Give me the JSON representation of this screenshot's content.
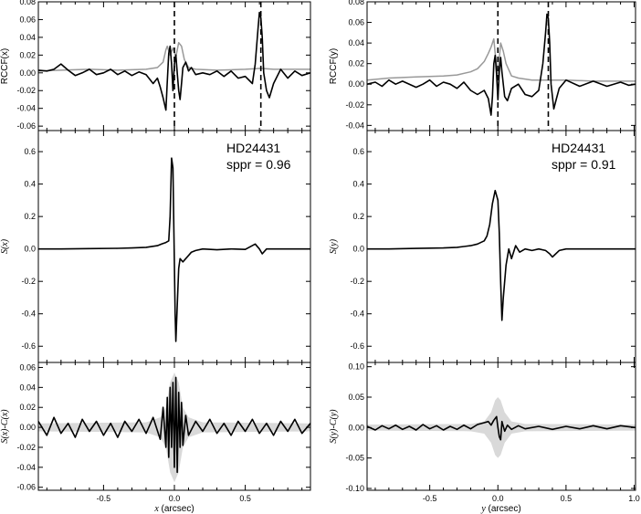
{
  "chart_data": [
    {
      "panel": "top-left",
      "type": "line",
      "ylabel": "RCCF(x)",
      "ylim": [
        -0.065,
        0.08
      ],
      "xlim": [
        -0.96,
        0.96
      ],
      "yticks": [
        "0.08",
        "0.06",
        "0.04",
        "0.02",
        "0.00",
        "-0.02",
        "-0.04",
        "-0.06"
      ],
      "ytick_values": [
        0.08,
        0.06,
        0.04,
        0.02,
        0.0,
        -0.02,
        -0.04,
        -0.06
      ],
      "vlines": [
        0.0,
        0.61
      ],
      "series": [
        {
          "color": "#999999",
          "x": [
            -0.96,
            -0.8,
            -0.6,
            -0.4,
            -0.2,
            -0.12,
            -0.08,
            -0.06,
            -0.05,
            -0.03,
            -0.01,
            0.01,
            0.03,
            0.05,
            0.07,
            0.1,
            0.15,
            0.3,
            0.5,
            0.61,
            0.7,
            0.96
          ],
          "y": [
            0.002,
            0.003,
            0.004,
            0.003,
            0.004,
            0.006,
            0.012,
            0.026,
            0.03,
            0.02,
            0.028,
            0.018,
            0.034,
            0.03,
            0.015,
            0.006,
            0.004,
            0.003,
            0.004,
            0.005,
            0.004,
            0.004
          ]
        },
        {
          "color": "#000000",
          "x": [
            -0.96,
            -0.9,
            -0.85,
            -0.8,
            -0.75,
            -0.7,
            -0.65,
            -0.6,
            -0.55,
            -0.5,
            -0.45,
            -0.4,
            -0.35,
            -0.3,
            -0.25,
            -0.2,
            -0.15,
            -0.12,
            -0.1,
            -0.08,
            -0.06,
            -0.05,
            -0.04,
            -0.03,
            -0.02,
            -0.01,
            0.0,
            0.01,
            0.02,
            0.03,
            0.04,
            0.05,
            0.06,
            0.08,
            0.1,
            0.12,
            0.15,
            0.2,
            0.25,
            0.3,
            0.35,
            0.4,
            0.45,
            0.5,
            0.55,
            0.57,
            0.59,
            0.6,
            0.61,
            0.62,
            0.63,
            0.65,
            0.67,
            0.7,
            0.75,
            0.8,
            0.85,
            0.9,
            0.96
          ],
          "y": [
            0.003,
            0.002,
            0.004,
            0.01,
            0.003,
            -0.003,
            0.0,
            0.004,
            -0.002,
            0.0,
            0.004,
            -0.002,
            0.002,
            -0.003,
            0.001,
            -0.002,
            -0.012,
            -0.006,
            -0.016,
            -0.028,
            -0.042,
            -0.01,
            0.022,
            0.03,
            0.01,
            -0.02,
            0.01,
            0.02,
            0.0,
            -0.02,
            -0.03,
            -0.012,
            0.006,
            0.012,
            0.002,
            0.006,
            -0.002,
            0.0,
            -0.002,
            0.002,
            -0.004,
            0.002,
            -0.006,
            -0.004,
            -0.012,
            0.01,
            0.05,
            0.068,
            0.062,
            0.04,
            0.0,
            -0.02,
            -0.028,
            -0.012,
            0.004,
            -0.006,
            0.002,
            -0.003,
            0.0
          ]
        }
      ]
    },
    {
      "panel": "top-right",
      "type": "line",
      "ylabel": "RCCF(y)",
      "ylim": [
        -0.045,
        0.08
      ],
      "xlim": [
        -0.96,
        1.01
      ],
      "yticks": [
        "0.08",
        "0.06",
        "0.04",
        "0.02",
        "0.00",
        "-0.02",
        "-0.04"
      ],
      "ytick_values": [
        0.08,
        0.06,
        0.04,
        0.02,
        0.0,
        -0.02,
        -0.04
      ],
      "vlines": [
        0.0,
        0.37
      ],
      "series": [
        {
          "color": "#999999",
          "x": [
            -0.96,
            -0.8,
            -0.6,
            -0.4,
            -0.3,
            -0.2,
            -0.15,
            -0.1,
            -0.07,
            -0.05,
            -0.03,
            -0.02,
            0.0,
            0.02,
            0.04,
            0.06,
            0.1,
            0.15,
            0.25,
            0.37,
            0.5,
            0.7,
            0.96,
            1.01
          ],
          "y": [
            0.004,
            0.006,
            0.007,
            0.008,
            0.009,
            0.012,
            0.015,
            0.022,
            0.03,
            0.036,
            0.044,
            0.03,
            0.01,
            0.04,
            0.032,
            0.02,
            0.008,
            0.006,
            0.004,
            0.004,
            0.004,
            0.003,
            0.003,
            0.003
          ]
        },
        {
          "color": "#000000",
          "x": [
            -0.96,
            -0.9,
            -0.85,
            -0.8,
            -0.75,
            -0.7,
            -0.6,
            -0.55,
            -0.5,
            -0.45,
            -0.4,
            -0.35,
            -0.3,
            -0.25,
            -0.2,
            -0.15,
            -0.1,
            -0.07,
            -0.05,
            -0.04,
            -0.03,
            -0.02,
            -0.01,
            0.0,
            0.01,
            0.02,
            0.03,
            0.05,
            0.07,
            0.1,
            0.15,
            0.2,
            0.25,
            0.3,
            0.33,
            0.35,
            0.36,
            0.37,
            0.38,
            0.39,
            0.41,
            0.43,
            0.45,
            0.5,
            0.6,
            0.7,
            0.8,
            0.9,
            0.96,
            1.01
          ],
          "y": [
            0.0,
            0.002,
            -0.002,
            0.004,
            0.0,
            0.003,
            -0.003,
            0.0,
            0.004,
            -0.002,
            0.002,
            0.0,
            -0.004,
            0.002,
            -0.006,
            -0.01,
            -0.006,
            -0.014,
            -0.03,
            -0.012,
            0.02,
            0.028,
            0.01,
            -0.015,
            0.012,
            0.026,
            0.012,
            -0.012,
            -0.016,
            -0.004,
            0.0,
            -0.01,
            -0.012,
            -0.006,
            0.02,
            0.05,
            0.068,
            0.064,
            0.04,
            0.0,
            -0.024,
            -0.014,
            -0.004,
            0.004,
            -0.002,
            0.003,
            -0.002,
            0.002,
            -0.001,
            0.0
          ]
        }
      ]
    },
    {
      "panel": "middle-left",
      "type": "line",
      "ylabel": "S(x)",
      "ylim": [
        -0.7,
        0.73
      ],
      "xlim": [
        -0.96,
        0.96
      ],
      "yticks": [
        "0.6",
        "0.4",
        "0.2",
        "0.0",
        "-0.2",
        "-0.4",
        "-0.6"
      ],
      "ytick_values": [
        0.6,
        0.4,
        0.2,
        0.0,
        -0.2,
        -0.4,
        -0.6
      ],
      "annotation": [
        "HD24431",
        "sppr = 0.96"
      ],
      "series": [
        {
          "color": "#000000",
          "x": [
            -0.96,
            -0.8,
            -0.6,
            -0.4,
            -0.3,
            -0.2,
            -0.12,
            -0.09,
            -0.06,
            -0.04,
            -0.03,
            -0.02,
            -0.01,
            0.0,
            0.005,
            0.01,
            0.02,
            0.03,
            0.04,
            0.06,
            0.08,
            0.1,
            0.12,
            0.15,
            0.2,
            0.3,
            0.4,
            0.5,
            0.57,
            0.6,
            0.62,
            0.65,
            0.7,
            0.8,
            0.96
          ],
          "y": [
            0.0,
            0.0,
            0.002,
            0.004,
            0.006,
            0.01,
            0.02,
            0.03,
            0.04,
            0.05,
            0.2,
            0.56,
            0.5,
            -0.1,
            -0.4,
            -0.57,
            -0.35,
            -0.12,
            -0.06,
            -0.08,
            -0.06,
            -0.04,
            -0.02,
            -0.01,
            0.0,
            -0.005,
            0.0,
            -0.003,
            0.03,
            0.0,
            -0.03,
            0.0,
            0.0,
            0.0,
            0.0
          ]
        }
      ]
    },
    {
      "panel": "middle-right",
      "type": "line",
      "ylabel": "S(y)",
      "ylim": [
        -0.7,
        0.73
      ],
      "xlim": [
        -0.96,
        1.01
      ],
      "yticks": [
        "0.6",
        "0.4",
        "0.2",
        "0.0",
        "-0.2",
        "-0.4",
        "-0.6"
      ],
      "ytick_values": [
        0.6,
        0.4,
        0.2,
        0.0,
        -0.2,
        -0.4,
        -0.6
      ],
      "annotation": [
        "HD24431",
        "sppr = 0.91"
      ],
      "series": [
        {
          "color": "#000000",
          "x": [
            -0.96,
            -0.8,
            -0.6,
            -0.4,
            -0.3,
            -0.2,
            -0.15,
            -0.1,
            -0.08,
            -0.06,
            -0.04,
            -0.02,
            0.0,
            0.01,
            0.02,
            0.03,
            0.04,
            0.06,
            0.08,
            0.1,
            0.13,
            0.16,
            0.2,
            0.25,
            0.3,
            0.35,
            0.38,
            0.4,
            0.45,
            0.5,
            0.7,
            0.9,
            1.01
          ],
          "y": [
            0.0,
            0.0,
            0.003,
            0.006,
            0.01,
            0.02,
            0.03,
            0.05,
            0.08,
            0.15,
            0.28,
            0.36,
            0.3,
            0.1,
            -0.2,
            -0.44,
            -0.3,
            -0.1,
            0.0,
            -0.06,
            0.02,
            -0.02,
            0.0,
            -0.01,
            0.0,
            -0.01,
            -0.03,
            -0.05,
            -0.01,
            0.0,
            0.0,
            0.0,
            0.0
          ]
        }
      ]
    },
    {
      "panel": "bottom-left",
      "type": "line",
      "ylabel": "S(x)-C(x)",
      "xlabel": "x (arcsec)",
      "ylim": [
        -0.063,
        0.065
      ],
      "xlim": [
        -0.96,
        0.96
      ],
      "yticks": [
        "0.06",
        "0.04",
        "0.02",
        "0.00",
        "-0.02",
        "-0.04",
        "-0.06"
      ],
      "ytick_values": [
        0.06,
        0.04,
        0.02,
        0.0,
        -0.02,
        -0.04,
        -0.06
      ],
      "xticks": [
        "-0.5",
        "0.0",
        "0.5"
      ],
      "xtick_values": [
        -0.5,
        0.0,
        0.5
      ],
      "band": {
        "x": [
          -0.96,
          -0.2,
          -0.1,
          -0.06,
          -0.03,
          0.0,
          0.03,
          0.06,
          0.1,
          0.2,
          0.96
        ],
        "hi": [
          0.004,
          0.005,
          0.01,
          0.02,
          0.045,
          0.055,
          0.045,
          0.02,
          0.01,
          0.005,
          0.004
        ],
        "lo": [
          -0.004,
          -0.005,
          -0.01,
          -0.02,
          -0.045,
          -0.055,
          -0.045,
          -0.02,
          -0.01,
          -0.005,
          -0.004
        ]
      },
      "series": [
        {
          "color": "#000000",
          "x": [
            -0.96,
            -0.9,
            -0.85,
            -0.8,
            -0.75,
            -0.7,
            -0.65,
            -0.6,
            -0.55,
            -0.5,
            -0.45,
            -0.4,
            -0.35,
            -0.3,
            -0.25,
            -0.2,
            -0.15,
            -0.1,
            -0.08,
            -0.06,
            -0.05,
            -0.04,
            -0.03,
            -0.02,
            -0.01,
            0.0,
            0.01,
            0.02,
            0.03,
            0.04,
            0.05,
            0.06,
            0.08,
            0.1,
            0.15,
            0.2,
            0.25,
            0.3,
            0.35,
            0.4,
            0.45,
            0.5,
            0.55,
            0.6,
            0.65,
            0.7,
            0.75,
            0.8,
            0.85,
            0.9,
            0.96
          ],
          "y": [
            0.006,
            -0.008,
            0.01,
            -0.006,
            0.004,
            -0.01,
            0.008,
            -0.004,
            0.006,
            -0.008,
            0.004,
            -0.01,
            0.006,
            -0.004,
            0.008,
            -0.006,
            0.01,
            -0.012,
            0.02,
            -0.02,
            0.03,
            -0.03,
            0.04,
            -0.02,
            0.045,
            -0.04,
            0.05,
            -0.045,
            0.035,
            -0.02,
            0.025,
            -0.018,
            0.012,
            -0.008,
            0.006,
            -0.004,
            0.008,
            -0.006,
            0.004,
            -0.008,
            0.006,
            -0.004,
            0.008,
            -0.006,
            0.004,
            -0.008,
            0.006,
            -0.004,
            0.008,
            -0.006,
            0.004
          ]
        }
      ]
    },
    {
      "panel": "bottom-right",
      "type": "line",
      "ylabel": "S(y)-C(y)",
      "xlabel": "y (arcsec)",
      "ylim": [
        -0.103,
        0.107
      ],
      "xlim": [
        -0.96,
        1.01
      ],
      "yticks": [
        "0.10",
        "0.05",
        "0.00",
        "-0.05",
        "-0.10"
      ],
      "ytick_values": [
        0.1,
        0.05,
        0.0,
        -0.05,
        -0.1
      ],
      "xticks": [
        "-0.5",
        "0.0",
        "0.5",
        "1.0"
      ],
      "xtick_values": [
        -0.5,
        0.0,
        0.5,
        1.0
      ],
      "band": {
        "x": [
          -0.96,
          -0.2,
          -0.1,
          -0.05,
          -0.02,
          0.0,
          0.02,
          0.05,
          0.1,
          0.2,
          1.01
        ],
        "hi": [
          0.005,
          0.006,
          0.01,
          0.025,
          0.045,
          0.05,
          0.045,
          0.025,
          0.01,
          0.006,
          0.005
        ],
        "lo": [
          -0.005,
          -0.006,
          -0.01,
          -0.025,
          -0.045,
          -0.05,
          -0.045,
          -0.025,
          -0.01,
          -0.006,
          -0.005
        ]
      },
      "series": [
        {
          "color": "#000000",
          "x": [
            -0.96,
            -0.9,
            -0.85,
            -0.8,
            -0.75,
            -0.7,
            -0.65,
            -0.6,
            -0.55,
            -0.5,
            -0.45,
            -0.4,
            -0.35,
            -0.3,
            -0.25,
            -0.2,
            -0.15,
            -0.1,
            -0.07,
            -0.05,
            -0.03,
            -0.01,
            0.0,
            0.01,
            0.02,
            0.03,
            0.05,
            0.07,
            0.1,
            0.15,
            0.2,
            0.3,
            0.4,
            0.5,
            0.6,
            0.7,
            0.8,
            0.9,
            1.01
          ],
          "y": [
            0.002,
            -0.004,
            0.003,
            -0.002,
            0.004,
            -0.003,
            0.002,
            -0.004,
            0.005,
            -0.002,
            0.003,
            -0.004,
            0.002,
            -0.003,
            0.004,
            -0.002,
            0.005,
            0.008,
            0.01,
            0.004,
            0.012,
            0.018,
            0.0,
            -0.015,
            -0.02,
            0.01,
            -0.006,
            0.004,
            -0.003,
            0.003,
            -0.002,
            0.002,
            -0.003,
            0.002,
            -0.002,
            0.003,
            -0.002,
            0.003,
            0.0
          ]
        }
      ]
    }
  ]
}
